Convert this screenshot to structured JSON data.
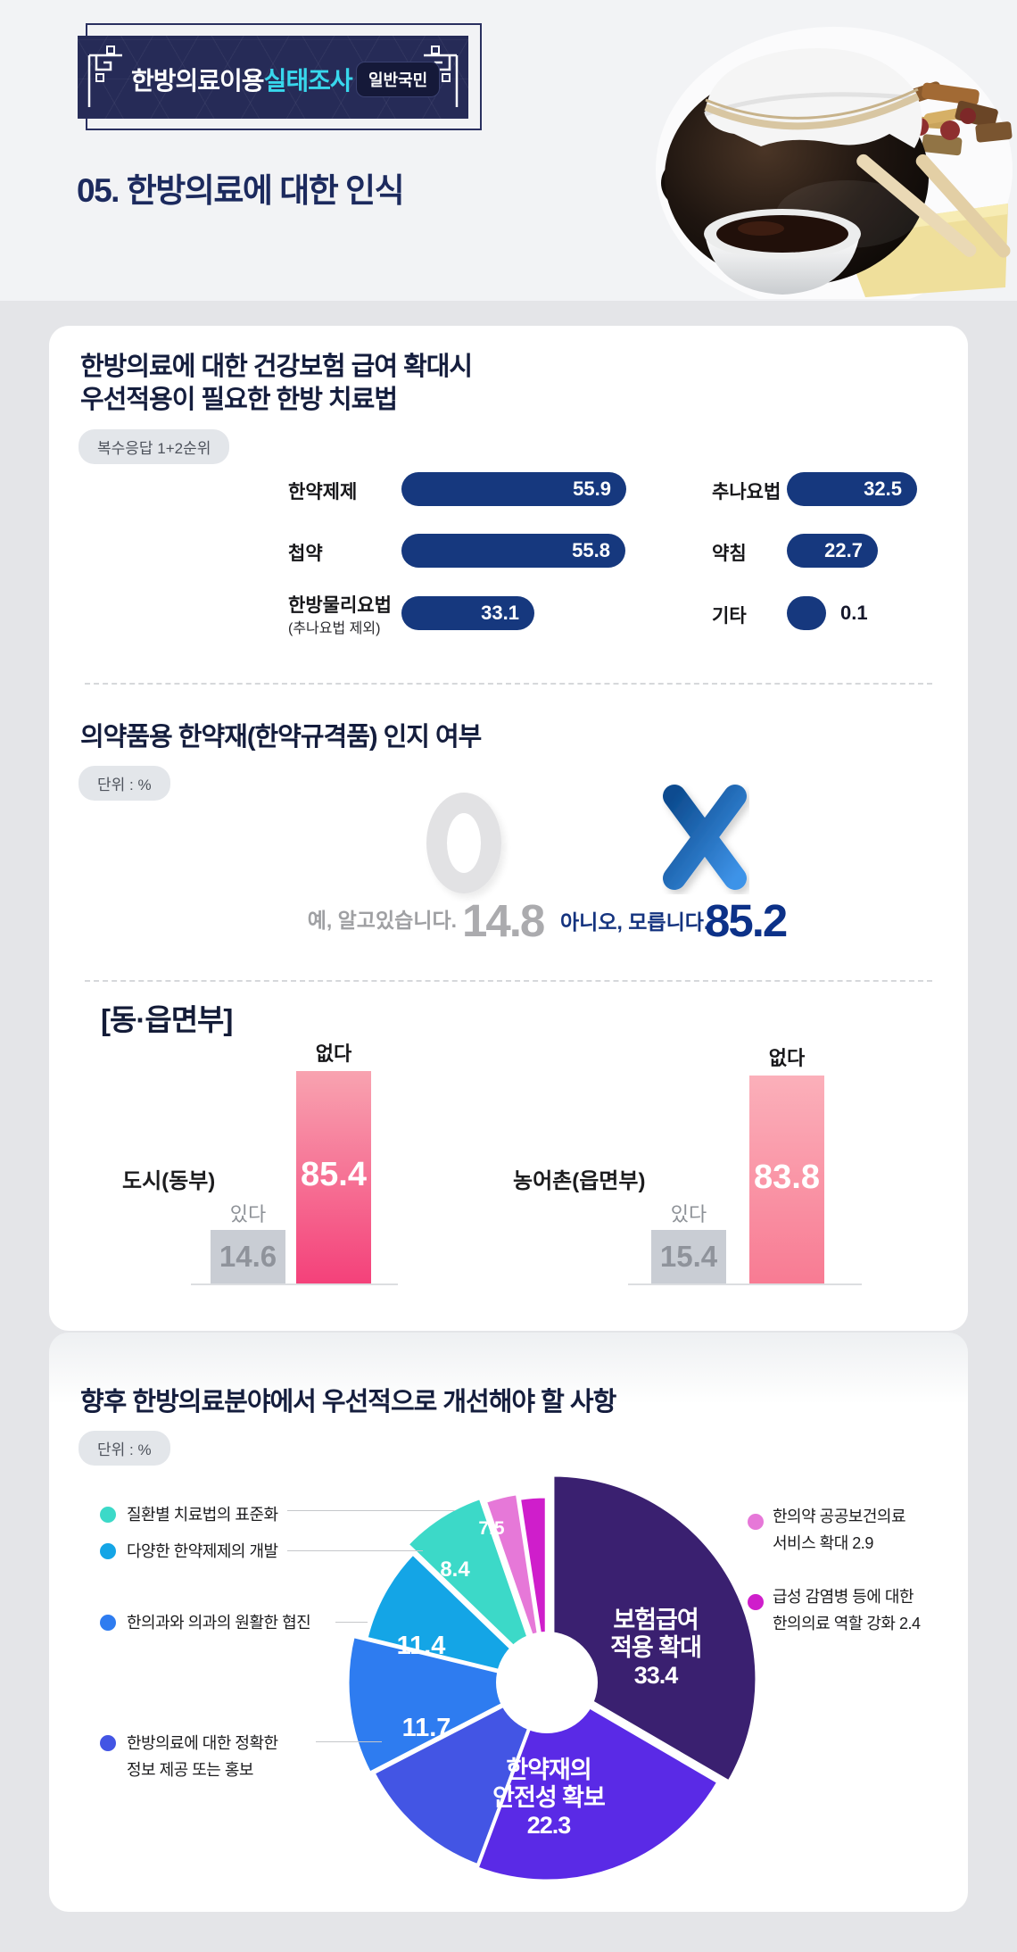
{
  "header": {
    "banner_title_main": "한방의료이용",
    "banner_title_accent": "실태조사",
    "banner_badge": "일반국민",
    "page_title": "05. 한방의료에 대한 인식"
  },
  "section1": {
    "title_line1": "한방의료에 대한 건강보험 급여 확대시",
    "title_line2": "우선적용이 필요한 한방 치료법",
    "note": "복수응답 1+2순위"
  },
  "section2": {
    "title": "의약품용 한약재(한약규격품) 인지 여부",
    "unit": "단위 : %"
  },
  "section3": {
    "title": "[동·읍면부]"
  },
  "section4": {
    "title": "향후 한방의료분야에서 우선적으로 개선해야 할 사항",
    "unit": "단위 : %"
  },
  "chart_data": [
    {
      "type": "bar",
      "title": "한방의료에 대한 건강보험 급여 확대시 우선적용이 필요한 한방 치료법",
      "note": "복수응답 1+2순위",
      "orientation": "horizontal",
      "bar_color": "#16387e",
      "categories": [
        "한약제제",
        "첩약",
        "한방물리요법",
        "추나요법",
        "약침",
        "기타"
      ],
      "category_note": "(추나요법 제외)",
      "values": [
        55.9,
        55.8,
        33.1,
        32.5,
        22.7,
        0.1
      ]
    },
    {
      "type": "pictogram",
      "title": "의약품용 한약재(한약규격품) 인지 여부",
      "unit": "단위 : %",
      "items": [
        {
          "symbol": "O",
          "label": "예, 알고있습니다.",
          "value": 14.8,
          "color": "#e2e2e4"
        },
        {
          "symbol": "X",
          "label": "아니오, 모릅니다.",
          "value": 85.2,
          "color": "#1c4e9c"
        }
      ]
    },
    {
      "type": "bar",
      "title": "[동·읍면부]",
      "orientation": "vertical",
      "series_names": [
        "있다",
        "없다"
      ],
      "groups": [
        {
          "label": "도시(동부)",
          "yes": 14.6,
          "no": 85.4
        },
        {
          "label": "농어촌(읍면부)",
          "yes": 15.4,
          "no": 83.8
        }
      ],
      "yes_color": "#c9cdd4",
      "no_gradient": [
        "#f8a3b0",
        "#f4417a"
      ]
    },
    {
      "type": "pie",
      "title": "향후 한방의료분야에서 우선적으로 개선해야 할 사항",
      "unit": "단위 : %",
      "donut_hole": true,
      "legend_position": "both-sides",
      "slices": [
        {
          "label": "보험급여 적용 확대",
          "label_lines": [
            "보험급여",
            "적용 확대"
          ],
          "value": 33.4,
          "color": "#3a2070",
          "r": 228,
          "explode": 8
        },
        {
          "label": "한약재의 안전성 확보",
          "label_lines": [
            "한약재의",
            "안전성 확보"
          ],
          "value": 22.3,
          "color": "#5a2ae6",
          "r": 222,
          "explode": 0
        },
        {
          "label": "한방의료에 대한 정확한 정보 제공 또는 홍보",
          "legend_lines": [
            "한방의료에 대한 정확한",
            "정보 제공 또는 홍보"
          ],
          "value": 11.7,
          "color": "#4355e4",
          "r": 216,
          "explode": 3
        },
        {
          "label": "한의과와 의과의 원활한 협진",
          "legend_lines": [
            "한의과와 의과의 원활한 협진"
          ],
          "value": 11.4,
          "color": "#2e7cf0",
          "r": 219,
          "explode": 4
        },
        {
          "label": "다양한 한약제제의 개발",
          "legend_lines": [
            "다양한 한약제제의 개발"
          ],
          "value": 8.4,
          "color": "#14a5e6",
          "r": 206,
          "explode": 2
        },
        {
          "label": "질환별 치료법의 표준화",
          "legend_lines": [
            "질환별 치료법의 표준화"
          ],
          "value": 7.5,
          "color": "#3cd9c8",
          "r": 206,
          "explode": 14
        },
        {
          "label": "한의약 공공보건의료 서비스 확대",
          "legend_lines": [
            "한의약 공공보건의료",
            "서비스  확대  2.9"
          ],
          "value": 2.9,
          "color": "#e678d8",
          "r": 198,
          "explode": 16
        },
        {
          "label": "급성 감염병 등에 대한 한의의료 역할 강화",
          "legend_lines": [
            "급성 감염병 등에 대한",
            "한의의료 역할 강화 2.4"
          ],
          "value": 2.4,
          "color": "#cf1ecb",
          "r": 198,
          "explode": 10
        }
      ]
    }
  ]
}
